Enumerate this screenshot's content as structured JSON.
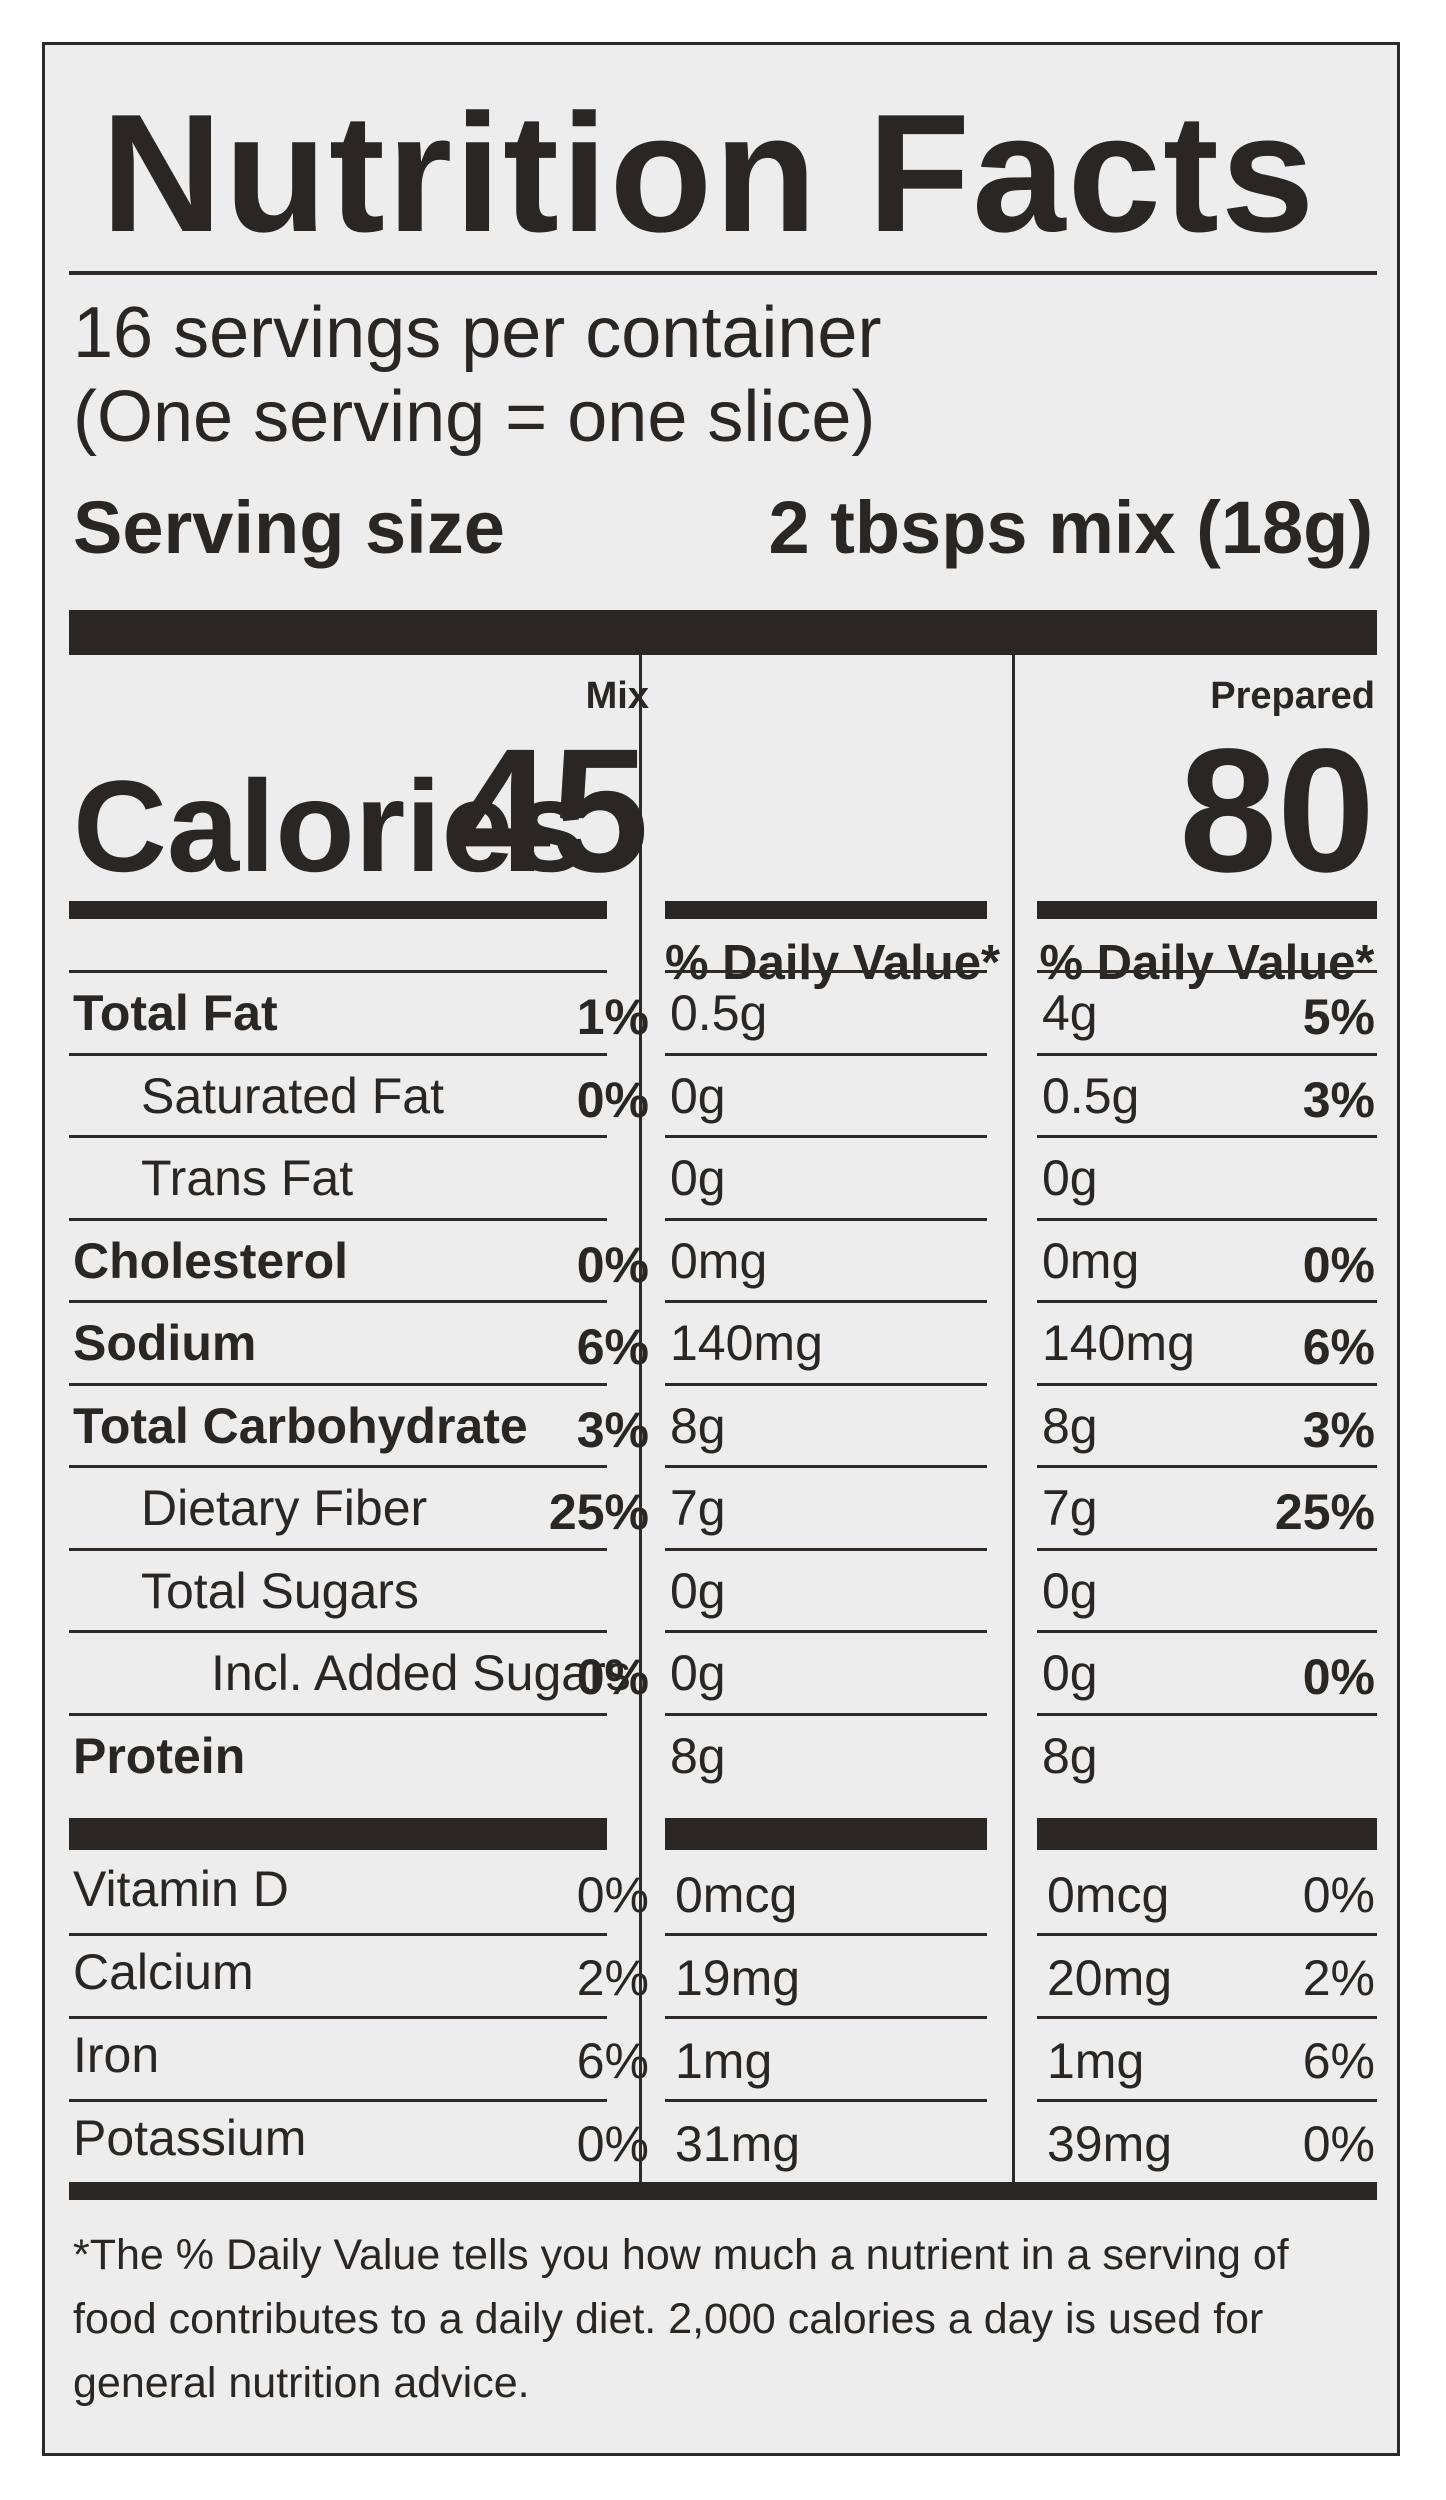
{
  "label": {
    "title": "Nutrition Facts",
    "servings_per_container": "16 servings per container",
    "serving_note": "(One serving = one slice)",
    "serving_size_label": "Serving size",
    "serving_size_value": "2 tbsps mix (18g)",
    "columns": {
      "mix": "Mix",
      "prepared": "Prepared"
    },
    "calories_label": "Calories",
    "calories": {
      "mix": "45",
      "prepared": "80"
    },
    "daily_value_header": "% Daily Value*",
    "nutrients": [
      {
        "name": "Total Fat",
        "bold": true,
        "indent": 0,
        "mix_amount": "0.5g",
        "mix_dv": "1%",
        "prep_amount": "4g",
        "prep_dv": "5%"
      },
      {
        "name": "Saturated Fat",
        "bold": false,
        "indent": 1,
        "mix_amount": "0g",
        "mix_dv": "0%",
        "prep_amount": "0.5g",
        "prep_dv": "3%"
      },
      {
        "name": "Trans Fat",
        "bold": false,
        "indent": 1,
        "mix_amount": "0g",
        "mix_dv": "",
        "prep_amount": "0g",
        "prep_dv": ""
      },
      {
        "name": "Cholesterol",
        "bold": true,
        "indent": 0,
        "mix_amount": "0mg",
        "mix_dv": "0%",
        "prep_amount": "0mg",
        "prep_dv": "0%"
      },
      {
        "name": "Sodium",
        "bold": true,
        "indent": 0,
        "mix_amount": "140mg",
        "mix_dv": "6%",
        "prep_amount": "140mg",
        "prep_dv": "6%"
      },
      {
        "name": "Total Carbohydrate",
        "bold": true,
        "indent": 0,
        "mix_amount": "8g",
        "mix_dv": "3%",
        "prep_amount": "8g",
        "prep_dv": "3%"
      },
      {
        "name": "Dietary Fiber",
        "bold": false,
        "indent": 1,
        "mix_amount": "7g",
        "mix_dv": "25%",
        "prep_amount": "7g",
        "prep_dv": "25%"
      },
      {
        "name": "Total Sugars",
        "bold": false,
        "indent": 1,
        "mix_amount": "0g",
        "mix_dv": "",
        "prep_amount": "0g",
        "prep_dv": ""
      },
      {
        "name": "Incl. Added Sugars",
        "bold": false,
        "indent": 2,
        "mix_amount": "0g",
        "mix_dv": "0%",
        "prep_amount": "0g",
        "prep_dv": "0%"
      },
      {
        "name": "Protein",
        "bold": true,
        "indent": 0,
        "mix_amount": "8g",
        "mix_dv": "",
        "prep_amount": "8g",
        "prep_dv": ""
      }
    ],
    "vitamins": [
      {
        "name": "Vitamin D",
        "mix_amount": "0mcg",
        "mix_dv": "0%",
        "prep_amount": "0mcg",
        "prep_dv": "0%"
      },
      {
        "name": "Calcium",
        "mix_amount": "19mg",
        "mix_dv": "2%",
        "prep_amount": "20mg",
        "prep_dv": "2%"
      },
      {
        "name": "Iron",
        "mix_amount": "1mg",
        "mix_dv": "6%",
        "prep_amount": "1mg",
        "prep_dv": "6%"
      },
      {
        "name": "Potassium",
        "mix_amount": "31mg",
        "mix_dv": "0%",
        "prep_amount": "39mg",
        "prep_dv": "0%"
      }
    ],
    "footnote": "*The % Daily Value tells you how much a nutrient in a serving of food contributes to a daily diet. 2,000 calories a day is used for general nutrition advice."
  }
}
